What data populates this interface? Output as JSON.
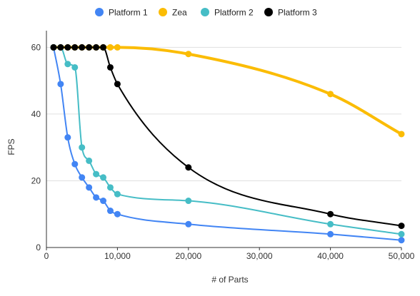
{
  "chart_data": {
    "type": "line",
    "title": "",
    "xlabel": "# of Parts",
    "ylabel": "FPS",
    "xlim": [
      0,
      50000
    ],
    "ylim": [
      0,
      65
    ],
    "x_ticks": [
      0,
      10000,
      20000,
      30000,
      40000,
      50000
    ],
    "x_tick_labels": [
      "0",
      "10,000",
      "20,000",
      "30,000",
      "40,000",
      "50,000"
    ],
    "y_ticks": [
      0,
      20,
      40,
      60
    ],
    "y_tick_labels": [
      "0",
      "20",
      "40",
      "60"
    ],
    "grid": true,
    "legend_position": "top",
    "series": [
      {
        "name": "Platform 1",
        "color": "#4285f4",
        "line_width": 2,
        "x": [
          1000,
          2000,
          3000,
          4000,
          5000,
          6000,
          7000,
          8000,
          9000,
          10000,
          20000,
          40000,
          50000
        ],
        "y": [
          60,
          49,
          33,
          25,
          21,
          18,
          15,
          14,
          11,
          10,
          7,
          4,
          2.2
        ]
      },
      {
        "name": "Zea",
        "color": "#fbbc04",
        "line_width": 4,
        "x": [
          1000,
          2000,
          3000,
          4000,
          5000,
          6000,
          7000,
          8000,
          9000,
          10000,
          20000,
          40000,
          50000
        ],
        "y": [
          60,
          60,
          60,
          60,
          60,
          60,
          60,
          60,
          60,
          60,
          58,
          46,
          34
        ]
      },
      {
        "name": "Platform 2",
        "color": "#46bdc6",
        "line_width": 2,
        "x": [
          1000,
          2000,
          3000,
          4000,
          5000,
          6000,
          7000,
          8000,
          9000,
          10000,
          20000,
          40000,
          50000
        ],
        "y": [
          60,
          60,
          55,
          54,
          30,
          26,
          22,
          21,
          18,
          16,
          14,
          7,
          4
        ]
      },
      {
        "name": "Platform 3",
        "color": "#000000",
        "line_width": 2,
        "x": [
          1000,
          2000,
          3000,
          4000,
          5000,
          6000,
          7000,
          8000,
          9000,
          10000,
          20000,
          40000,
          50000
        ],
        "y": [
          60,
          60,
          60,
          60,
          60,
          60,
          60,
          60,
          54,
          49,
          24,
          10,
          6.5
        ]
      }
    ]
  }
}
